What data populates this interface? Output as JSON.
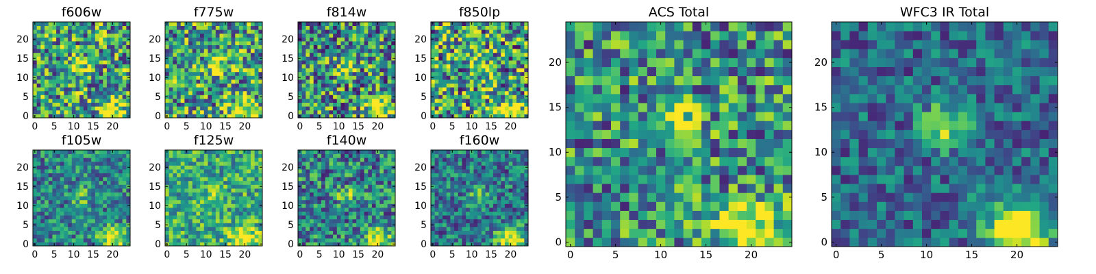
{
  "figure": {
    "colormap": "viridis",
    "background": "#ffffff"
  },
  "chart_data": [
    {
      "type": "heatmap",
      "title": "f606w",
      "grid": [
        25,
        25
      ],
      "xlim": [
        0,
        24
      ],
      "ylim": [
        0,
        24
      ],
      "xticks": [
        "0",
        "5",
        "10",
        "15",
        "20"
      ],
      "yticks": [
        "0",
        "5",
        "10",
        "15",
        "20"
      ],
      "source": {
        "center": [
          12,
          13
        ],
        "center_strength": 0.35,
        "corner": [
          20,
          1
        ],
        "corner_strength": 0.55
      },
      "base_level": 0.55,
      "noise": 0.45
    },
    {
      "type": "heatmap",
      "title": "f775w",
      "grid": [
        25,
        25
      ],
      "xlim": [
        0,
        24
      ],
      "ylim": [
        0,
        24
      ],
      "xticks": [
        "0",
        "5",
        "10",
        "15",
        "20"
      ],
      "yticks": [
        "0",
        "5",
        "10",
        "15",
        "20"
      ],
      "source": {
        "center": [
          12,
          13
        ],
        "center_strength": 0.4,
        "corner": [
          20,
          1
        ],
        "corner_strength": 0.55
      },
      "base_level": 0.55,
      "noise": 0.45
    },
    {
      "type": "heatmap",
      "title": "f814w",
      "grid": [
        25,
        25
      ],
      "xlim": [
        0,
        24
      ],
      "ylim": [
        0,
        24
      ],
      "xticks": [
        "0",
        "5",
        "10",
        "15",
        "20"
      ],
      "yticks": [
        "0",
        "5",
        "10",
        "15",
        "20"
      ],
      "source": {
        "center": [
          12,
          13
        ],
        "center_strength": 0.45,
        "corner": [
          20,
          1
        ],
        "corner_strength": 0.55
      },
      "base_level": 0.5,
      "noise": 0.45
    },
    {
      "type": "heatmap",
      "title": "f850lp",
      "grid": [
        25,
        25
      ],
      "xlim": [
        0,
        24
      ],
      "ylim": [
        0,
        24
      ],
      "xticks": [
        "0",
        "5",
        "10",
        "15",
        "20"
      ],
      "yticks": [
        "0",
        "5",
        "10",
        "15",
        "20"
      ],
      "source": {
        "center": [
          12,
          13
        ],
        "center_strength": 0.35,
        "corner": [
          20,
          1
        ],
        "corner_strength": 0.6
      },
      "base_level": 0.55,
      "noise": 0.5
    },
    {
      "type": "heatmap",
      "title": "f105w",
      "grid": [
        25,
        25
      ],
      "xlim": [
        0,
        24
      ],
      "ylim": [
        0,
        24
      ],
      "xticks": [
        "0",
        "5",
        "10",
        "15",
        "20"
      ],
      "yticks": [
        "0",
        "5",
        "10",
        "15",
        "20"
      ],
      "source": {
        "center": [
          12,
          12
        ],
        "center_strength": 0.3,
        "corner": [
          20,
          1
        ],
        "corner_strength": 0.6
      },
      "base_level": 0.45,
      "noise": 0.3
    },
    {
      "type": "heatmap",
      "title": "f125w",
      "grid": [
        25,
        25
      ],
      "xlim": [
        0,
        24
      ],
      "ylim": [
        0,
        24
      ],
      "xticks": [
        "0",
        "5",
        "10",
        "15",
        "20"
      ],
      "yticks": [
        "0",
        "5",
        "10",
        "15",
        "20"
      ],
      "source": {
        "center": [
          12,
          12
        ],
        "center_strength": 0.3,
        "corner": [
          20,
          1
        ],
        "corner_strength": 0.5
      },
      "base_level": 0.6,
      "noise": 0.3
    },
    {
      "type": "heatmap",
      "title": "f140w",
      "grid": [
        25,
        25
      ],
      "xlim": [
        0,
        24
      ],
      "ylim": [
        0,
        24
      ],
      "xticks": [
        "0",
        "5",
        "10",
        "15",
        "20"
      ],
      "yticks": [
        "0",
        "5",
        "10",
        "15",
        "20"
      ],
      "source": {
        "center": [
          12,
          12
        ],
        "center_strength": 0.35,
        "corner": [
          20,
          1
        ],
        "corner_strength": 0.55
      },
      "base_level": 0.45,
      "noise": 0.35
    },
    {
      "type": "heatmap",
      "title": "f160w",
      "grid": [
        25,
        25
      ],
      "xlim": [
        0,
        24
      ],
      "ylim": [
        0,
        24
      ],
      "xticks": [
        "0",
        "5",
        "10",
        "15",
        "20"
      ],
      "yticks": [
        "0",
        "5",
        "10",
        "15",
        "20"
      ],
      "source": {
        "center": [
          12,
          12
        ],
        "center_strength": 0.4,
        "corner": [
          20,
          1
        ],
        "corner_strength": 0.65
      },
      "base_level": 0.4,
      "noise": 0.3
    },
    {
      "type": "heatmap",
      "title": "ACS Total",
      "grid": [
        25,
        25
      ],
      "xlim": [
        0,
        24
      ],
      "ylim": [
        0,
        24
      ],
      "xticks": [
        "0",
        "5",
        "10",
        "15",
        "20"
      ],
      "yticks": [
        "0",
        "5",
        "10",
        "15",
        "20"
      ],
      "source": {
        "center": [
          12,
          13
        ],
        "center_strength": 0.45,
        "corner": [
          20,
          1
        ],
        "corner_strength": 0.6
      },
      "base_level": 0.5,
      "noise": 0.4
    },
    {
      "type": "heatmap",
      "title": "WFC3 IR Total",
      "grid": [
        25,
        25
      ],
      "xlim": [
        0,
        24
      ],
      "ylim": [
        0,
        24
      ],
      "xticks": [
        "0",
        "5",
        "10",
        "15",
        "20"
      ],
      "yticks": [
        "0",
        "5",
        "10",
        "15",
        "20"
      ],
      "source": {
        "center": [
          12,
          13
        ],
        "center_strength": 0.5,
        "corner": [
          20,
          1
        ],
        "corner_strength": 0.7
      },
      "base_level": 0.35,
      "noise": 0.25
    }
  ]
}
